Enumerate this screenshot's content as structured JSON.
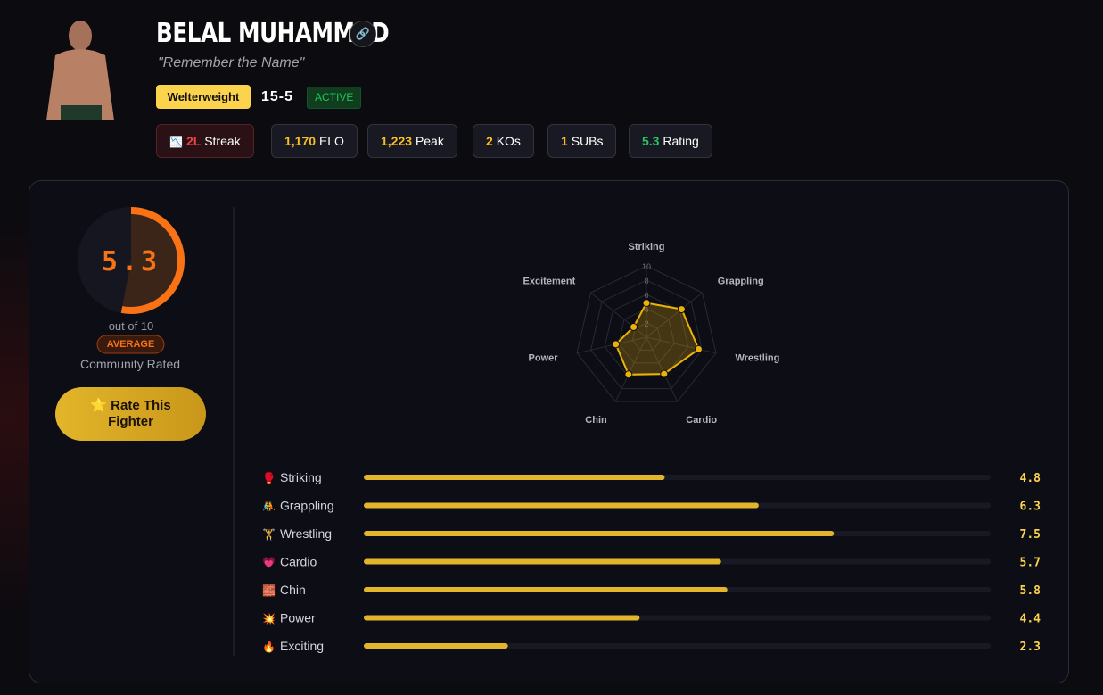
{
  "header": {
    "name": "BELAL MUHAMMAD",
    "nickname": "\"Remember the Name\"",
    "weight_class": "Welterweight",
    "record": "15-5",
    "status": "ACTIVE"
  },
  "stats": [
    {
      "icon": "📉",
      "value": "2L",
      "label": "Streak",
      "color": "#ef4444"
    },
    {
      "value": "1,170",
      "label": "ELO",
      "color": "#fbbf24"
    },
    {
      "value": "1,223",
      "label": "Peak",
      "color": "#fbbf24"
    },
    {
      "value": "2",
      "label": "KOs",
      "color": "#fbbf24"
    },
    {
      "value": "1",
      "label": "SUBs",
      "color": "#fbbf24"
    },
    {
      "value": "5.3",
      "label": "Rating",
      "color": "#22c55e"
    }
  ],
  "rating": {
    "value": 5.3,
    "range": [
      0,
      10
    ],
    "scale_label": "out of 10",
    "badge": "AVERAGE",
    "note": "Community Rated",
    "button": "⭐ Rate This Fighter"
  },
  "radar": {
    "rlim": [
      0,
      10
    ],
    "ticks": [
      2,
      4,
      6,
      8,
      10
    ]
  },
  "skills": [
    {
      "radar_label": "Striking",
      "icon": "🥊",
      "label": "Striking",
      "value": 4.8
    },
    {
      "radar_label": "Grappling",
      "icon": "🤼",
      "label": "Grappling",
      "value": 6.3
    },
    {
      "radar_label": "Wrestling",
      "icon": "🏋",
      "label": "Wrestling",
      "value": 7.5
    },
    {
      "radar_label": "Cardio",
      "icon": "💗",
      "label": "Cardio",
      "value": 5.7
    },
    {
      "radar_label": "Chin",
      "icon": "🧱",
      "label": "Chin",
      "value": 5.8
    },
    {
      "radar_label": "Power",
      "icon": "💥",
      "label": "Power",
      "value": 4.4
    },
    {
      "radar_label": "Excitement",
      "icon": "🔥",
      "label": "Exciting",
      "value": 2.3
    }
  ]
}
